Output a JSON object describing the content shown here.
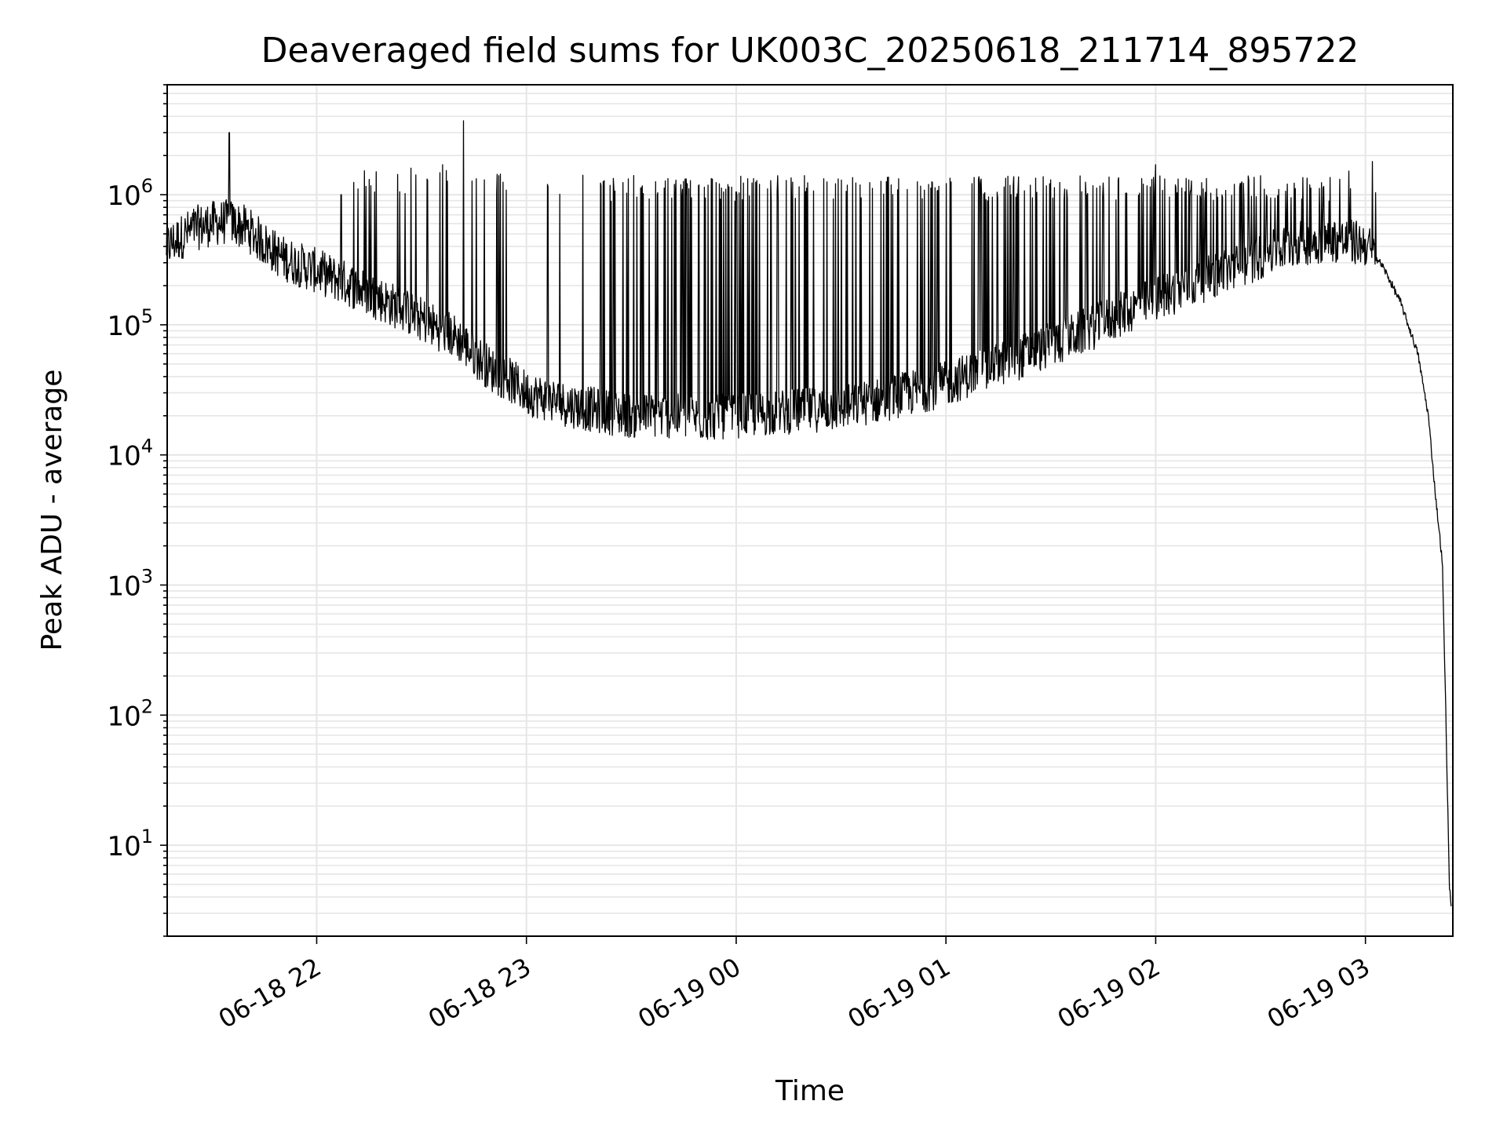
{
  "chart_data": {
    "type": "line",
    "title": "Deaveraged field sums for UK003C_20250618_211714_895722",
    "xlabel": "Time",
    "ylabel": "Peak ADU - average",
    "yscale": "log",
    "ylim": [
      2,
      7000000
    ],
    "xlim": [
      "06-18 21:17:14",
      "06-19 03:25:00"
    ],
    "grid": true,
    "line_color": "#000000",
    "grid_color": "#e6e6e6",
    "x_ticks": [
      {
        "label": "06-18 22",
        "time": "06-18 22:00"
      },
      {
        "label": "06-18 23",
        "time": "06-18 23:00"
      },
      {
        "label": "06-19 00",
        "time": "06-19 00:00"
      },
      {
        "label": "06-19 01",
        "time": "06-19 01:00"
      },
      {
        "label": "06-19 02",
        "time": "06-19 02:00"
      },
      {
        "label": "06-19 03",
        "time": "06-19 03:00"
      }
    ],
    "y_ticks": [
      {
        "base": "10",
        "exp": "1",
        "value": 10
      },
      {
        "base": "10",
        "exp": "2",
        "value": 100
      },
      {
        "base": "10",
        "exp": "3",
        "value": 1000
      },
      {
        "base": "10",
        "exp": "4",
        "value": 10000
      },
      {
        "base": "10",
        "exp": "5",
        "value": 100000
      },
      {
        "base": "10",
        "exp": "6",
        "value": 1000000
      }
    ],
    "series": [
      {
        "values_note_baseline": "",
        "points": [
          [
            "06-18 21:17",
            400000
          ],
          [
            "06-18 21:20",
            450000
          ],
          [
            "06-18 21:25",
            550000
          ],
          [
            "06-18 21:30",
            600000
          ],
          [
            "06-18 21:35",
            620000
          ],
          [
            "06-18 21:40",
            550000
          ],
          [
            "06-18 21:45",
            420000
          ],
          [
            "06-18 21:50",
            330000
          ],
          [
            "06-18 21:55",
            290000
          ],
          [
            "06-18 22:00",
            260000
          ],
          [
            "06-18 22:10",
            200000
          ],
          [
            "06-18 22:20",
            150000
          ],
          [
            "06-18 22:30",
            110000
          ],
          [
            "06-18 22:40",
            80000
          ],
          [
            "06-18 22:45",
            60000
          ],
          [
            "06-18 22:50",
            45000
          ],
          [
            "06-18 22:55",
            38000
          ],
          [
            "06-18 23:00",
            30000
          ],
          [
            "06-18 23:10",
            25000
          ],
          [
            "06-18 23:20",
            22000
          ],
          [
            "06-18 23:30",
            20000
          ],
          [
            "06-18 23:40",
            20000
          ],
          [
            "06-18 23:50",
            19000
          ],
          [
            "06-19 00:00",
            20000
          ],
          [
            "06-19 00:10",
            21000
          ],
          [
            "06-19 00:20",
            22000
          ],
          [
            "06-19 00:30",
            23000
          ],
          [
            "06-19 00:40",
            26000
          ],
          [
            "06-19 00:50",
            30000
          ],
          [
            "06-19 01:00",
            35000
          ],
          [
            "06-19 01:10",
            45000
          ],
          [
            "06-19 01:20",
            55000
          ],
          [
            "06-19 01:30",
            70000
          ],
          [
            "06-19 01:40",
            90000
          ],
          [
            "06-19 01:50",
            120000
          ],
          [
            "06-19 02:00",
            160000
          ],
          [
            "06-19 02:10",
            200000
          ],
          [
            "06-19 02:20",
            260000
          ],
          [
            "06-19 02:30",
            330000
          ],
          [
            "06-19 02:40",
            420000
          ],
          [
            "06-19 02:50",
            450000
          ],
          [
            "06-19 03:00",
            420000
          ],
          [
            "06-19 03:05",
            280000
          ],
          [
            "06-19 03:10",
            150000
          ],
          [
            "06-19 03:15",
            60000
          ],
          [
            "06-19 03:18",
            20000
          ],
          [
            "06-19 03:20",
            5000
          ],
          [
            "06-19 03:22",
            1500
          ],
          [
            "06-19 03:23",
            100
          ],
          [
            "06-19 03:24",
            5
          ],
          [
            "06-19 03:24:30",
            3.5
          ]
        ],
        "spikes": [
          [
            "06-18 21:35",
            3000000
          ],
          [
            "06-18 22:07",
            1000000
          ],
          [
            "06-18 22:17",
            1500000
          ],
          [
            "06-18 22:27",
            1600000
          ],
          [
            "06-18 22:36",
            1700000
          ],
          [
            "06-18 22:42",
            3700000
          ],
          [
            "06-18 22:48",
            1300000
          ],
          [
            "06-18 23:06",
            1200000
          ],
          [
            "06-19 00:00",
            1050000
          ],
          [
            "06-19 00:55",
            1200000
          ],
          [
            "06-19 01:30",
            1300000
          ],
          [
            "06-19 02:00",
            1700000
          ],
          [
            "06-19 02:30",
            1400000
          ],
          [
            "06-19 03:02",
            1800000
          ]
        ]
      }
    ]
  }
}
